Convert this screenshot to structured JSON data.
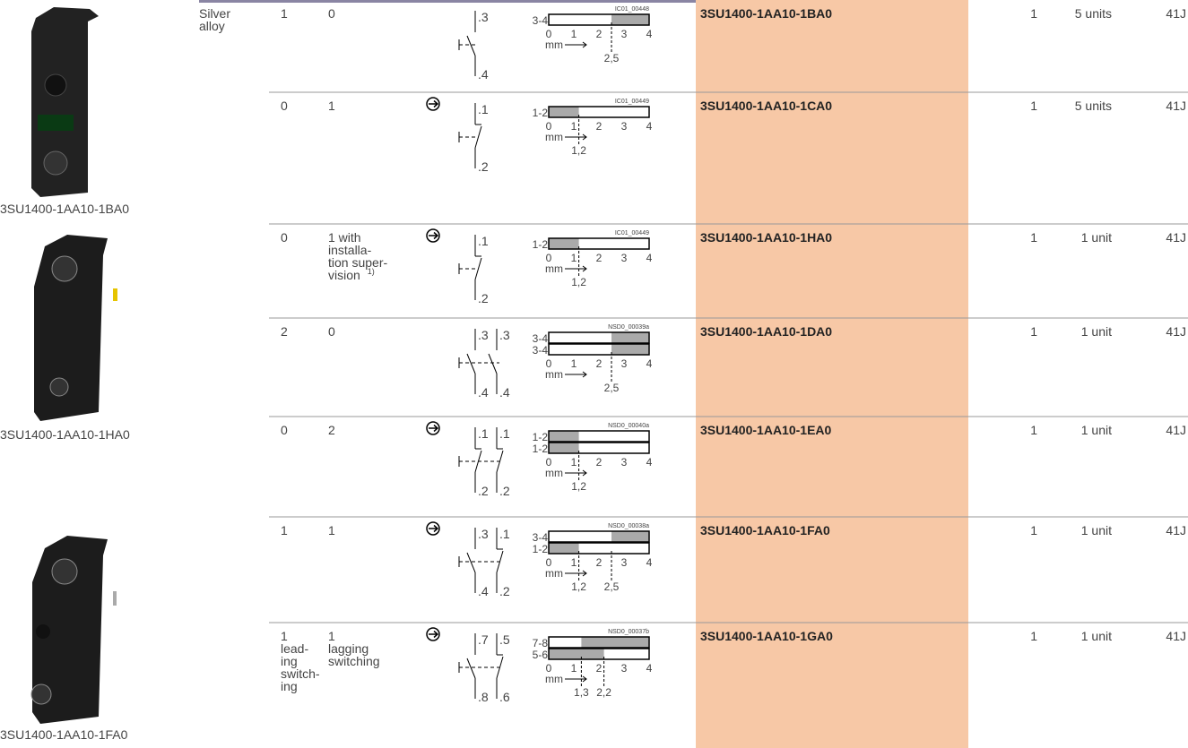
{
  "images": [
    {
      "caption": "3SU1400-1AA10-1BA0"
    },
    {
      "caption": "3SU1400-1AA10-1HA0"
    },
    {
      "caption": "3SU1400-1AA10-1FA0"
    }
  ],
  "rows": [
    {
      "material": [
        "Silver",
        "alloy"
      ],
      "no": [
        "1"
      ],
      "nc": [
        "0"
      ],
      "positive_opening": false,
      "contacts": [
        {
          "type": "NO",
          "top": ".3",
          "bottom": ".4"
        }
      ],
      "diagram": {
        "id": "IC01_00448",
        "tracks": [
          {
            "label": "3-4",
            "shaded": [
              [
                2.5,
                4
              ]
            ]
          }
        ],
        "ticks": [
          0,
          1,
          2,
          3,
          4
        ],
        "unit": "mm",
        "marks": [
          {
            "value": 2.5,
            "label": "2,5"
          }
        ]
      },
      "order": "3SU1400-1AA10-1BA0",
      "pu": "1",
      "ps": "5 units",
      "pg": "41J"
    },
    {
      "no": [
        "0"
      ],
      "nc": [
        "1"
      ],
      "positive_opening": true,
      "contacts": [
        {
          "type": "NC",
          "top": ".1",
          "bottom": ".2"
        }
      ],
      "diagram": {
        "id": "IC01_00449",
        "tracks": [
          {
            "label": "1-2",
            "shaded": [
              [
                0,
                1.2
              ]
            ]
          }
        ],
        "ticks": [
          0,
          1,
          2,
          3,
          4
        ],
        "unit": "mm",
        "marks": [
          {
            "value": 1.2,
            "label": "1,2"
          }
        ]
      },
      "order": "3SU1400-1AA10-1CA0",
      "pu": "1",
      "ps": "5 units",
      "pg": "41J"
    },
    {
      "no": [
        "0"
      ],
      "nc": [
        "1 with",
        "installa-",
        "tion super-",
        "vision"
      ],
      "nc_note": "1)",
      "positive_opening": true,
      "contacts": [
        {
          "type": "NC",
          "top": ".1",
          "bottom": ".2"
        }
      ],
      "diagram": {
        "id": "IC01_00449",
        "tracks": [
          {
            "label": "1-2",
            "shaded": [
              [
                0,
                1.2
              ]
            ]
          }
        ],
        "ticks": [
          0,
          1,
          2,
          3,
          4
        ],
        "unit": "mm",
        "marks": [
          {
            "value": 1.2,
            "label": "1,2"
          }
        ]
      },
      "order": "3SU1400-1AA10-1HA0",
      "pu": "1",
      "ps": "1 unit",
      "pg": "41J"
    },
    {
      "no": [
        "2"
      ],
      "nc": [
        "0"
      ],
      "positive_opening": false,
      "contacts": [
        {
          "type": "NO",
          "top": ".3",
          "bottom": ".4"
        },
        {
          "type": "NO",
          "top": ".3",
          "bottom": ".4"
        }
      ],
      "diagram": {
        "id": "NSD0_00039a",
        "tracks": [
          {
            "label": "3-4",
            "shaded": [
              [
                2.5,
                4
              ]
            ]
          },
          {
            "label": "3-4",
            "shaded": [
              [
                2.5,
                4
              ]
            ]
          }
        ],
        "ticks": [
          0,
          1,
          2,
          3,
          4
        ],
        "unit": "mm",
        "marks": [
          {
            "value": 2.5,
            "label": "2,5"
          }
        ]
      },
      "order": "3SU1400-1AA10-1DA0",
      "pu": "1",
      "ps": "1 unit",
      "pg": "41J"
    },
    {
      "no": [
        "0"
      ],
      "nc": [
        "2"
      ],
      "positive_opening": true,
      "contacts": [
        {
          "type": "NC",
          "top": ".1",
          "bottom": ".2"
        },
        {
          "type": "NC",
          "top": ".1",
          "bottom": ".2"
        }
      ],
      "diagram": {
        "id": "NSD0_00040a",
        "tracks": [
          {
            "label": "1-2",
            "shaded": [
              [
                0,
                1.2
              ]
            ]
          },
          {
            "label": "1-2",
            "shaded": [
              [
                0,
                1.2
              ]
            ]
          }
        ],
        "ticks": [
          0,
          1,
          2,
          3,
          4
        ],
        "unit": "mm",
        "marks": [
          {
            "value": 1.2,
            "label": "1,2"
          }
        ]
      },
      "order": "3SU1400-1AA10-1EA0",
      "pu": "1",
      "ps": "1 unit",
      "pg": "41J"
    },
    {
      "no": [
        "1"
      ],
      "nc": [
        "1"
      ],
      "positive_opening": true,
      "contacts": [
        {
          "type": "NO",
          "top": ".3",
          "bottom": ".4"
        },
        {
          "type": "NC",
          "top": ".1",
          "bottom": ".2"
        }
      ],
      "diagram": {
        "id": "NSD0_00038a",
        "tracks": [
          {
            "label": "3-4",
            "shaded": [
              [
                2.5,
                4
              ]
            ]
          },
          {
            "label": "1-2",
            "shaded": [
              [
                0,
                1.2
              ]
            ]
          }
        ],
        "ticks": [
          0,
          1,
          2,
          3,
          4
        ],
        "unit": "mm",
        "marks": [
          {
            "value": 1.2,
            "label": "1,2"
          },
          {
            "value": 2.5,
            "label": "2,5"
          }
        ]
      },
      "order": "3SU1400-1AA10-1FA0",
      "pu": "1",
      "ps": "1 unit",
      "pg": "41J"
    },
    {
      "no": [
        "1",
        "lead-",
        "ing",
        "switch-",
        "ing"
      ],
      "nc": [
        "1",
        "lagging",
        "switching"
      ],
      "positive_opening": true,
      "contacts": [
        {
          "type": "NO",
          "top": ".7",
          "bottom": ".8"
        },
        {
          "type": "NC",
          "top": ".5",
          "bottom": ".6"
        }
      ],
      "diagram": {
        "id": "NSD0_00037b",
        "tracks": [
          {
            "label": "7-8",
            "shaded": [
              [
                1.3,
                4
              ]
            ]
          },
          {
            "label": "5-6",
            "shaded": [
              [
                0,
                2.2
              ]
            ]
          }
        ],
        "ticks": [
          0,
          1,
          2,
          3,
          4
        ],
        "unit": "mm",
        "marks": [
          {
            "value": 1.3,
            "label": "1,3"
          },
          {
            "value": 2.2,
            "label": "2,2"
          }
        ]
      },
      "order": "3SU1400-1AA10-1GA0",
      "pu": "1",
      "ps": "1 unit",
      "pg": "41J"
    }
  ]
}
